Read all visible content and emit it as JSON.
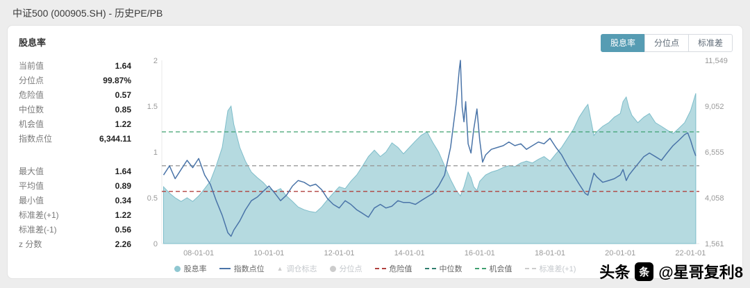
{
  "header": {
    "title": "中证500 (000905.SH) - 历史PE/PB"
  },
  "card": {
    "title": "股息率",
    "tabs": [
      {
        "label": "股息率",
        "active": true
      },
      {
        "label": "分位点",
        "active": false
      },
      {
        "label": "标准差",
        "active": false
      }
    ]
  },
  "stats": {
    "groups": [
      {
        "rows": [
          {
            "label": "当前值",
            "value": "1.64"
          },
          {
            "label": "分位点",
            "value": "99.87%"
          },
          {
            "label": "危险值",
            "value": "0.57"
          },
          {
            "label": "中位数",
            "value": "0.85"
          },
          {
            "label": "机会值",
            "value": "1.22"
          },
          {
            "label": "指数点位",
            "value": "6,344.11"
          }
        ]
      },
      {
        "rows": [
          {
            "label": "最大值",
            "value": "1.64"
          },
          {
            "label": "平均值",
            "value": "0.89"
          },
          {
            "label": "最小值",
            "value": "0.34"
          },
          {
            "label": "标准差(+1)",
            "value": "1.22"
          },
          {
            "label": "标准差(-1)",
            "value": "0.56"
          },
          {
            "label": "z 分数",
            "value": "2.26"
          }
        ]
      }
    ]
  },
  "legend": {
    "items": [
      {
        "key": "dividend-yield",
        "label": "股息率",
        "type": "circle",
        "color": "#8fc7d1",
        "text_color": "#666666"
      },
      {
        "key": "index-points",
        "label": "指数点位",
        "type": "line",
        "color": "#4a74a8",
        "text_color": "#666666"
      },
      {
        "key": "rebalance-marker",
        "label": "调仓标志",
        "type": "triangle",
        "color": "#cccccc",
        "text_color": "#c4c8cc"
      },
      {
        "key": "percentile",
        "label": "分位点",
        "type": "circle",
        "color": "#cccccc",
        "text_color": "#c4c8cc"
      },
      {
        "key": "danger-value",
        "label": "危险值",
        "type": "dash",
        "color": "#b0413e",
        "text_color": "#666666"
      },
      {
        "key": "median-value",
        "label": "中位数",
        "type": "dash",
        "color": "#2f7d6d",
        "text_color": "#666666"
      },
      {
        "key": "opportunity-value",
        "label": "机会值",
        "type": "dash",
        "color": "#3fa06f",
        "text_color": "#666666"
      },
      {
        "key": "std-plus-1",
        "label": "标准差(+1)",
        "type": "dash",
        "color": "#cccccc",
        "text_color": "#c4c8cc"
      }
    ]
  },
  "watermark": {
    "prefix": "头条",
    "logo_glyph": "条",
    "handle": "@星哥复利8"
  },
  "chart_data": {
    "type": "area",
    "title": "股息率 / 指数点位",
    "x_axis": {
      "range": [
        2006.95,
        2022.25
      ],
      "ticks": [
        {
          "t": 2008,
          "label": "08-01-01"
        },
        {
          "t": 2010,
          "label": "10-01-01"
        },
        {
          "t": 2012,
          "label": "12-01-01"
        },
        {
          "t": 2014,
          "label": "14-01-01"
        },
        {
          "t": 2016,
          "label": "16-01-01"
        },
        {
          "t": 2018,
          "label": "18-01-01"
        },
        {
          "t": 2020,
          "label": "20-01-01"
        },
        {
          "t": 2022,
          "label": "22-01-01"
        }
      ]
    },
    "y_left": {
      "range": [
        0,
        2
      ],
      "ticks": [
        {
          "v": 0,
          "label": "0"
        },
        {
          "v": 0.5,
          "label": "0.5"
        },
        {
          "v": 1,
          "label": "1"
        },
        {
          "v": 1.5,
          "label": "1.5"
        },
        {
          "v": 2,
          "label": "2"
        }
      ]
    },
    "y_right": {
      "range": [
        1561,
        11549
      ],
      "ticks": [
        {
          "v": 1561,
          "label": "1,561"
        },
        {
          "v": 4058,
          "label": "4,058"
        },
        {
          "v": 6555,
          "label": "6,555"
        },
        {
          "v": 9052,
          "label": "9,052"
        },
        {
          "v": 11549,
          "label": "11,549"
        }
      ]
    },
    "reference_lines": [
      {
        "name": "危险值",
        "value": 0.57,
        "color": "#b0413e"
      },
      {
        "name": "中位数",
        "value": 0.85,
        "color": "#999999"
      },
      {
        "name": "机会值",
        "value": 1.22,
        "color": "#3fa06f"
      }
    ],
    "series": [
      {
        "name": "股息率",
        "type": "area",
        "axis": "left",
        "color": "#7ebdca",
        "fill": "#a8d3da",
        "points": [
          [
            2007.0,
            0.62
          ],
          [
            2007.17,
            0.55
          ],
          [
            2007.33,
            0.5
          ],
          [
            2007.5,
            0.46
          ],
          [
            2007.67,
            0.5
          ],
          [
            2007.83,
            0.46
          ],
          [
            2008.0,
            0.52
          ],
          [
            2008.17,
            0.6
          ],
          [
            2008.33,
            0.68
          ],
          [
            2008.5,
            0.85
          ],
          [
            2008.67,
            1.05
          ],
          [
            2008.83,
            1.45
          ],
          [
            2008.92,
            1.5
          ],
          [
            2009.0,
            1.3
          ],
          [
            2009.17,
            1.05
          ],
          [
            2009.33,
            0.9
          ],
          [
            2009.5,
            0.78
          ],
          [
            2009.67,
            0.72
          ],
          [
            2009.83,
            0.67
          ],
          [
            2010.0,
            0.6
          ],
          [
            2010.17,
            0.57
          ],
          [
            2010.33,
            0.6
          ],
          [
            2010.5,
            0.52
          ],
          [
            2010.67,
            0.46
          ],
          [
            2010.83,
            0.4
          ],
          [
            2011.0,
            0.37
          ],
          [
            2011.17,
            0.35
          ],
          [
            2011.33,
            0.34
          ],
          [
            2011.5,
            0.4
          ],
          [
            2011.67,
            0.48
          ],
          [
            2011.83,
            0.55
          ],
          [
            2012.0,
            0.62
          ],
          [
            2012.17,
            0.6
          ],
          [
            2012.33,
            0.68
          ],
          [
            2012.5,
            0.75
          ],
          [
            2012.67,
            0.85
          ],
          [
            2012.83,
            0.95
          ],
          [
            2013.0,
            1.02
          ],
          [
            2013.17,
            0.95
          ],
          [
            2013.33,
            1.0
          ],
          [
            2013.5,
            1.1
          ],
          [
            2013.67,
            1.05
          ],
          [
            2013.83,
            0.98
          ],
          [
            2014.0,
            1.05
          ],
          [
            2014.17,
            1.12
          ],
          [
            2014.33,
            1.18
          ],
          [
            2014.5,
            1.22
          ],
          [
            2014.67,
            1.1
          ],
          [
            2014.83,
            1.0
          ],
          [
            2015.0,
            0.85
          ],
          [
            2015.17,
            0.7
          ],
          [
            2015.33,
            0.58
          ],
          [
            2015.45,
            0.52
          ],
          [
            2015.55,
            0.62
          ],
          [
            2015.67,
            0.78
          ],
          [
            2015.75,
            0.72
          ],
          [
            2015.83,
            0.62
          ],
          [
            2015.92,
            0.58
          ],
          [
            2016.0,
            0.68
          ],
          [
            2016.17,
            0.75
          ],
          [
            2016.33,
            0.78
          ],
          [
            2016.5,
            0.8
          ],
          [
            2016.67,
            0.83
          ],
          [
            2016.83,
            0.85
          ],
          [
            2017.0,
            0.84
          ],
          [
            2017.17,
            0.88
          ],
          [
            2017.33,
            0.9
          ],
          [
            2017.5,
            0.88
          ],
          [
            2017.67,
            0.92
          ],
          [
            2017.83,
            0.95
          ],
          [
            2018.0,
            0.9
          ],
          [
            2018.17,
            0.98
          ],
          [
            2018.33,
            1.05
          ],
          [
            2018.5,
            1.15
          ],
          [
            2018.67,
            1.25
          ],
          [
            2018.83,
            1.38
          ],
          [
            2019.0,
            1.48
          ],
          [
            2019.08,
            1.52
          ],
          [
            2019.25,
            1.18
          ],
          [
            2019.33,
            1.22
          ],
          [
            2019.5,
            1.28
          ],
          [
            2019.67,
            1.32
          ],
          [
            2019.83,
            1.38
          ],
          [
            2020.0,
            1.42
          ],
          [
            2020.08,
            1.55
          ],
          [
            2020.17,
            1.6
          ],
          [
            2020.25,
            1.48
          ],
          [
            2020.33,
            1.4
          ],
          [
            2020.5,
            1.32
          ],
          [
            2020.67,
            1.38
          ],
          [
            2020.83,
            1.42
          ],
          [
            2021.0,
            1.32
          ],
          [
            2021.17,
            1.28
          ],
          [
            2021.33,
            1.24
          ],
          [
            2021.5,
            1.2
          ],
          [
            2021.67,
            1.26
          ],
          [
            2021.83,
            1.32
          ],
          [
            2022.0,
            1.45
          ],
          [
            2022.08,
            1.55
          ],
          [
            2022.15,
            1.64
          ]
        ]
      },
      {
        "name": "指数点位",
        "type": "line",
        "axis": "right",
        "color": "#4a74a8",
        "points": [
          [
            2007.0,
            5300
          ],
          [
            2007.17,
            5800
          ],
          [
            2007.33,
            5100
          ],
          [
            2007.5,
            5600
          ],
          [
            2007.67,
            6100
          ],
          [
            2007.83,
            5700
          ],
          [
            2008.0,
            6200
          ],
          [
            2008.17,
            5300
          ],
          [
            2008.33,
            4800
          ],
          [
            2008.5,
            3900
          ],
          [
            2008.67,
            3100
          ],
          [
            2008.83,
            2150
          ],
          [
            2008.92,
            1960
          ],
          [
            2009.0,
            2300
          ],
          [
            2009.17,
            2800
          ],
          [
            2009.33,
            3400
          ],
          [
            2009.5,
            3900
          ],
          [
            2009.67,
            4100
          ],
          [
            2009.83,
            4400
          ],
          [
            2010.0,
            4700
          ],
          [
            2010.17,
            4300
          ],
          [
            2010.33,
            3900
          ],
          [
            2010.5,
            4200
          ],
          [
            2010.67,
            4700
          ],
          [
            2010.83,
            5000
          ],
          [
            2011.0,
            4900
          ],
          [
            2011.17,
            4700
          ],
          [
            2011.33,
            4800
          ],
          [
            2011.5,
            4500
          ],
          [
            2011.67,
            4000
          ],
          [
            2011.83,
            3700
          ],
          [
            2012.0,
            3500
          ],
          [
            2012.17,
            3900
          ],
          [
            2012.33,
            3700
          ],
          [
            2012.5,
            3400
          ],
          [
            2012.67,
            3200
          ],
          [
            2012.83,
            3000
          ],
          [
            2013.0,
            3500
          ],
          [
            2013.17,
            3700
          ],
          [
            2013.33,
            3500
          ],
          [
            2013.5,
            3600
          ],
          [
            2013.67,
            3900
          ],
          [
            2013.83,
            3800
          ],
          [
            2014.0,
            3800
          ],
          [
            2014.17,
            3700
          ],
          [
            2014.33,
            3900
          ],
          [
            2014.5,
            4100
          ],
          [
            2014.67,
            4300
          ],
          [
            2014.83,
            4700
          ],
          [
            2015.0,
            5300
          ],
          [
            2015.17,
            6800
          ],
          [
            2015.33,
            9200
          ],
          [
            2015.42,
            11100
          ],
          [
            2015.45,
            11549
          ],
          [
            2015.5,
            9000
          ],
          [
            2015.55,
            8200
          ],
          [
            2015.6,
            9300
          ],
          [
            2015.67,
            7000
          ],
          [
            2015.75,
            6500
          ],
          [
            2015.83,
            7800
          ],
          [
            2015.92,
            8900
          ],
          [
            2016.0,
            7200
          ],
          [
            2016.08,
            6000
          ],
          [
            2016.17,
            6400
          ],
          [
            2016.33,
            6700
          ],
          [
            2016.5,
            6800
          ],
          [
            2016.67,
            6900
          ],
          [
            2016.83,
            7100
          ],
          [
            2017.0,
            6900
          ],
          [
            2017.17,
            7000
          ],
          [
            2017.33,
            6700
          ],
          [
            2017.5,
            6900
          ],
          [
            2017.67,
            7100
          ],
          [
            2017.83,
            7000
          ],
          [
            2018.0,
            7300
          ],
          [
            2018.17,
            6800
          ],
          [
            2018.33,
            6400
          ],
          [
            2018.5,
            5800
          ],
          [
            2018.67,
            5300
          ],
          [
            2018.83,
            4800
          ],
          [
            2019.0,
            4300
          ],
          [
            2019.08,
            4200
          ],
          [
            2019.25,
            5400
          ],
          [
            2019.33,
            5200
          ],
          [
            2019.5,
            4900
          ],
          [
            2019.67,
            5000
          ],
          [
            2019.83,
            5100
          ],
          [
            2020.0,
            5300
          ],
          [
            2020.08,
            5600
          ],
          [
            2020.17,
            5000
          ],
          [
            2020.25,
            5300
          ],
          [
            2020.33,
            5500
          ],
          [
            2020.5,
            5900
          ],
          [
            2020.67,
            6300
          ],
          [
            2020.83,
            6500
          ],
          [
            2021.0,
            6300
          ],
          [
            2021.17,
            6100
          ],
          [
            2021.33,
            6500
          ],
          [
            2021.5,
            6900
          ],
          [
            2021.67,
            7200
          ],
          [
            2021.83,
            7500
          ],
          [
            2021.92,
            7600
          ],
          [
            2022.0,
            7200
          ],
          [
            2022.08,
            6700
          ],
          [
            2022.15,
            6344
          ]
        ]
      }
    ]
  }
}
